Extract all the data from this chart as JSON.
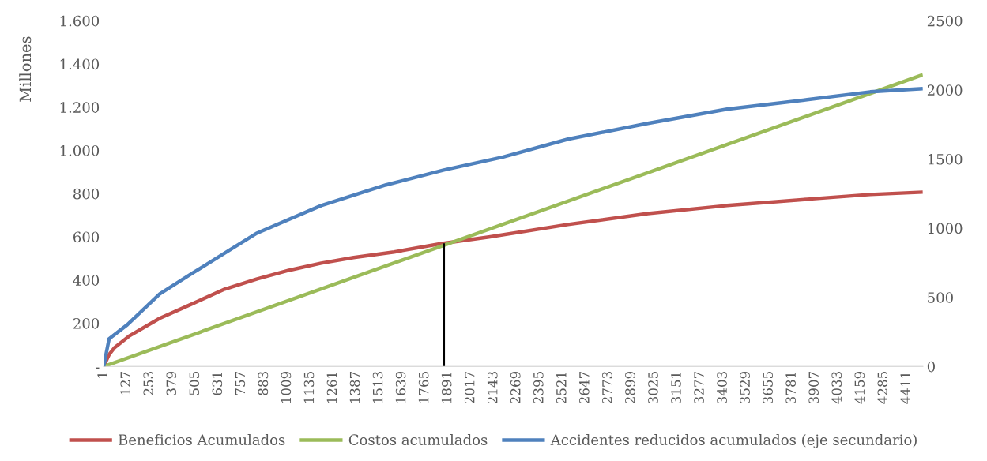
{
  "chart_data": {
    "type": "line",
    "ylabel": "Millones",
    "legend": "bottom",
    "grid": false,
    "marker": "none",
    "line_style": "solid",
    "xlim": [
      1,
      4500
    ],
    "xticks": [
      1,
      127,
      253,
      379,
      505,
      631,
      757,
      883,
      1009,
      1135,
      1261,
      1387,
      1513,
      1639,
      1765,
      1891,
      2017,
      2143,
      2269,
      2395,
      2521,
      2647,
      2773,
      2899,
      3025,
      3151,
      3277,
      3403,
      3529,
      3655,
      3781,
      3907,
      4033,
      4159,
      4285,
      4411
    ],
    "ylim": [
      0,
      1600
    ],
    "yticks": [
      {
        "value": 0,
        "label": "-"
      },
      200,
      400,
      600,
      800,
      {
        "value": 1000,
        "label": "1.000"
      },
      {
        "value": 1200,
        "label": "1.200"
      },
      {
        "value": 1400,
        "label": "1.400"
      },
      {
        "value": 1600,
        "label": "1.600"
      }
    ],
    "y2lim": [
      0,
      2500
    ],
    "y2ticks": [
      0,
      500,
      1000,
      1500,
      2000,
      2500
    ],
    "series": [
      {
        "name": "Beneficios Acumulados",
        "color": "#c0504d",
        "x": [
          1,
          31,
          62,
          140,
          309,
          488,
          666,
          844,
          1018,
          1196,
          1374,
          1596,
          1852,
          2117,
          2551,
          2990,
          3425,
          3864,
          4211,
          4500
        ],
        "values": [
          0,
          55,
          88,
          140,
          223,
          290,
          358,
          405,
          445,
          478,
          504,
          530,
          568,
          599,
          657,
          708,
          745,
          774,
          796,
          807
        ]
      },
      {
        "name": "Costos acumulados",
        "color": "#9bbb59",
        "x": [
          1,
          4500
        ],
        "values": [
          0,
          1350
        ]
      },
      {
        "name": "Accidentes reducidos acumulados (eje secundario)",
        "color": "#4f81bd",
        "axis": "y2",
        "x": [
          1,
          31,
          131,
          309,
          488,
          666,
          844,
          1196,
          1552,
          1869,
          2191,
          2551,
          2990,
          3425,
          3864,
          4211,
          4500
        ],
        "values": [
          0,
          200,
          302,
          525,
          674,
          820,
          965,
          1164,
          1313,
          1421,
          1513,
          1644,
          1758,
          1861,
          1929,
          1986,
          2009
        ]
      },
      {
        "color": "#000000",
        "x": [
          1870,
          1870
        ],
        "values": [
          0,
          570
        ]
      }
    ]
  }
}
